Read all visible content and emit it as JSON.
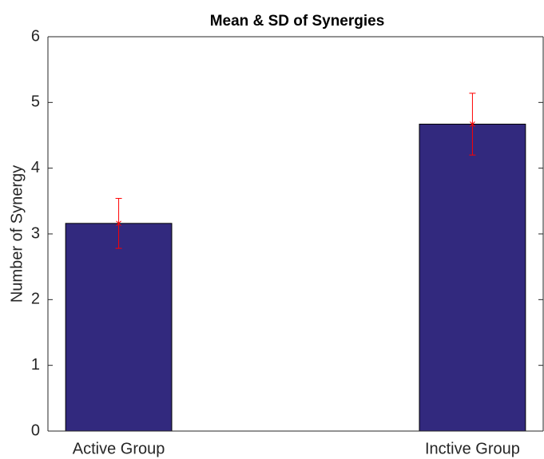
{
  "chart_data": {
    "type": "bar",
    "title": "Mean & SD of Synergies",
    "y_label": "Number of Synergy",
    "categories": [
      "Active Group",
      "Inctive Group"
    ],
    "values": [
      3.16,
      4.67
    ],
    "errors": [
      0.38,
      0.47
    ],
    "color": "#32297e",
    "error_color": "#ff0000",
    "ylim": [
      0,
      6
    ],
    "yticks": [
      0,
      1,
      2,
      3,
      4,
      5,
      6
    ],
    "grid": false
  }
}
